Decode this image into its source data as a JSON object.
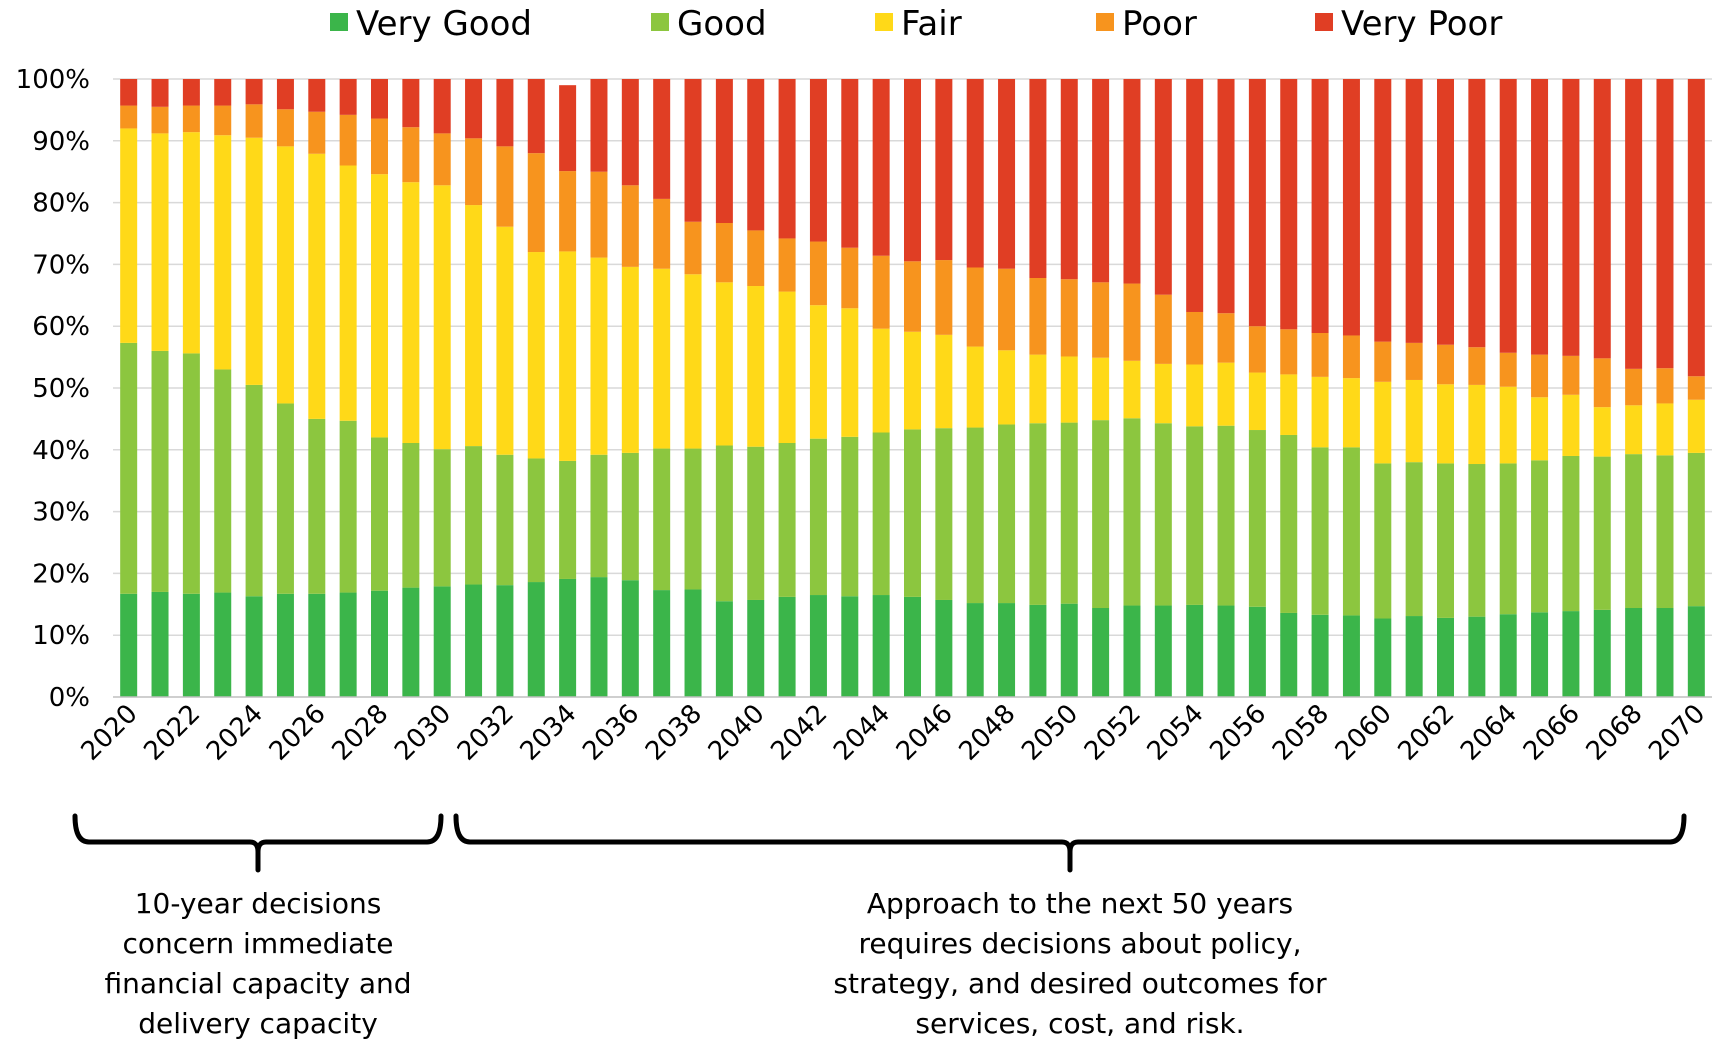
{
  "chart_data": {
    "type": "bar",
    "stacked": true,
    "x": [
      2020,
      2021,
      2022,
      2023,
      2024,
      2025,
      2026,
      2027,
      2028,
      2029,
      2030,
      2031,
      2032,
      2033,
      2034,
      2035,
      2036,
      2037,
      2038,
      2039,
      2040,
      2041,
      2042,
      2043,
      2044,
      2045,
      2046,
      2047,
      2048,
      2049,
      2050,
      2051,
      2052,
      2053,
      2054,
      2055,
      2056,
      2057,
      2058,
      2059,
      2060,
      2061,
      2062,
      2063,
      2064,
      2065,
      2066,
      2067,
      2068,
      2069,
      2070
    ],
    "x_tick_labels": [
      "2020",
      "2022",
      "2024",
      "2026",
      "2028",
      "2030",
      "2032",
      "2034",
      "2036",
      "2038",
      "2040",
      "2042",
      "2044",
      "2046",
      "2048",
      "2050",
      "2052",
      "2054",
      "2056",
      "2058",
      "2060",
      "2062",
      "2064",
      "2066",
      "2068",
      "2070"
    ],
    "y_tick_labels": [
      "0%",
      "10%",
      "20%",
      "30%",
      "40%",
      "50%",
      "60%",
      "70%",
      "80%",
      "90%",
      "100%"
    ],
    "ylim": [
      0,
      100
    ],
    "grid": true,
    "legend_position": "top",
    "series": [
      {
        "name": "Very Good",
        "color": "#3bb54a",
        "values": [
          16.7,
          17.0,
          16.7,
          16.9,
          16.3,
          16.7,
          16.7,
          16.9,
          17.2,
          17.7,
          17.9,
          18.2,
          18.1,
          18.6,
          19.1,
          19.4,
          18.9,
          17.3,
          17.4,
          15.5,
          15.7,
          16.2,
          16.5,
          16.3,
          16.5,
          16.2,
          15.7,
          15.2,
          15.2,
          14.9,
          15.1,
          14.4,
          14.8,
          14.8,
          14.9,
          14.8,
          14.6,
          13.6,
          13.3,
          13.2,
          12.7,
          13.1,
          12.8,
          13.0,
          13.4,
          13.7,
          13.9,
          14.1,
          14.4,
          14.4,
          14.7
        ]
      },
      {
        "name": "Good",
        "color": "#8cc63f",
        "values": [
          40.6,
          39.0,
          38.9,
          36.1,
          34.2,
          30.8,
          28.3,
          27.8,
          24.8,
          23.4,
          22.2,
          22.4,
          21.1,
          20.0,
          19.1,
          19.8,
          20.6,
          22.9,
          22.8,
          25.2,
          24.8,
          24.9,
          25.3,
          25.8,
          26.3,
          27.1,
          27.8,
          28.4,
          28.9,
          29.4,
          29.3,
          30.4,
          30.3,
          29.5,
          28.9,
          29.1,
          28.6,
          28.8,
          27.1,
          27.2,
          25.1,
          24.9,
          25.0,
          24.7,
          24.4,
          24.6,
          25.1,
          24.8,
          24.9,
          24.7,
          24.8
        ]
      },
      {
        "name": "Fair",
        "color": "#ffd918",
        "values": [
          34.7,
          35.2,
          35.8,
          37.9,
          40.0,
          41.6,
          42.9,
          41.3,
          42.6,
          42.2,
          42.7,
          39.0,
          36.9,
          33.4,
          33.9,
          31.9,
          30.1,
          29.1,
          28.2,
          26.4,
          26.0,
          24.5,
          21.6,
          20.8,
          16.8,
          15.8,
          15.1,
          13.1,
          12.0,
          11.1,
          10.7,
          10.1,
          9.3,
          9.6,
          10.0,
          10.2,
          9.3,
          9.8,
          11.4,
          11.2,
          13.2,
          13.3,
          12.8,
          12.8,
          12.4,
          10.2,
          9.9,
          8.0,
          7.9,
          8.4,
          8.6
        ]
      },
      {
        "name": "Poor",
        "color": "#f7941e",
        "values": [
          3.7,
          4.3,
          4.3,
          4.8,
          5.4,
          6.0,
          6.8,
          8.2,
          9.0,
          8.9,
          8.4,
          10.8,
          13.0,
          16.0,
          13.0,
          13.9,
          13.2,
          11.3,
          8.5,
          9.6,
          9.0,
          8.6,
          10.3,
          9.8,
          11.8,
          11.4,
          12.1,
          12.8,
          13.2,
          12.4,
          12.5,
          12.2,
          12.5,
          11.2,
          8.5,
          8.0,
          7.5,
          7.3,
          7.1,
          6.9,
          6.5,
          6.0,
          6.4,
          6.1,
          5.5,
          6.9,
          6.3,
          7.9,
          5.9,
          5.7,
          3.8
        ]
      },
      {
        "name": "Very Poor",
        "color": "#e03e24",
        "values": [
          4.3,
          4.5,
          4.3,
          4.3,
          4.1,
          4.9,
          5.3,
          5.8,
          6.4,
          7.8,
          8.8,
          9.6,
          10.9,
          12.0,
          13.9,
          15.0,
          17.2,
          19.4,
          23.1,
          23.3,
          24.5,
          25.8,
          26.3,
          27.3,
          28.6,
          29.5,
          29.3,
          30.5,
          30.7,
          32.2,
          32.4,
          32.9,
          33.1,
          34.9,
          37.7,
          37.9,
          40.0,
          40.5,
          41.1,
          41.5,
          42.5,
          42.7,
          43.0,
          43.4,
          44.3,
          44.6,
          44.8,
          45.2,
          46.9,
          46.8,
          48.1
        ]
      }
    ]
  },
  "annotations": {
    "left": {
      "lines": [
        "10-year decisions",
        "concern immediate",
        "financial capacity and",
        "delivery capacity"
      ]
    },
    "right": {
      "lines": [
        "Approach to the next 50 years",
        "requires decisions about policy,",
        "strategy, and desired outcomes for",
        "services, cost, and risk."
      ]
    }
  }
}
